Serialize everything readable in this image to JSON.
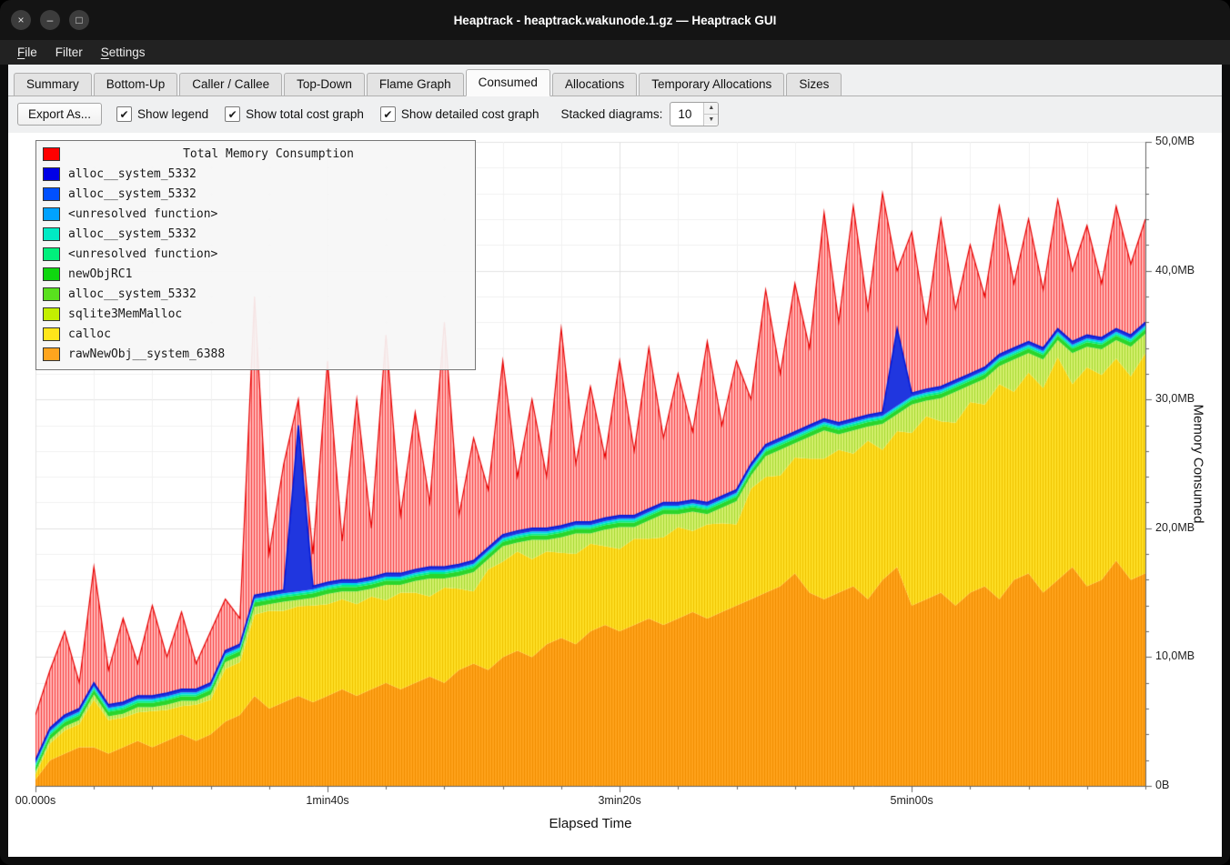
{
  "window": {
    "title": "Heaptrack - heaptrack.wakunode.1.gz — Heaptrack GUI",
    "controls": {
      "close": "×",
      "minimize": "–",
      "maximize": "□"
    }
  },
  "menu": {
    "file": {
      "mn": "F",
      "rest": "ile"
    },
    "filter": {
      "mn": "",
      "rest": "Filter"
    },
    "settings": {
      "mn": "S",
      "rest": "ettings"
    }
  },
  "tabs": [
    {
      "label": "Summary"
    },
    {
      "label": "Bottom-Up"
    },
    {
      "label": "Caller / Callee"
    },
    {
      "label": "Top-Down"
    },
    {
      "label": "Flame Graph"
    },
    {
      "label": "Consumed",
      "active": true
    },
    {
      "label": "Allocations"
    },
    {
      "label": "Temporary Allocations"
    },
    {
      "label": "Sizes"
    }
  ],
  "toolbar": {
    "export_label": "Export As...",
    "checkboxes": [
      {
        "label": "Show legend",
        "checked": true
      },
      {
        "label": "Show total cost graph",
        "checked": true
      },
      {
        "label": "Show detailed cost graph",
        "checked": true
      }
    ],
    "stacked_label": "Stacked diagrams:",
    "stacked_value": "10"
  },
  "chart_data": {
    "type": "area",
    "title": "Total Memory Consumption",
    "xlabel": "Elapsed Time",
    "ylabel": "Memory Consumed",
    "unit": "MB",
    "xlim": [
      0,
      380
    ],
    "ylim": [
      0,
      50
    ],
    "grid": {
      "x_minor": 20,
      "x_major": 100,
      "y_minor": 2,
      "y_major": 10
    },
    "x_ticks": [
      {
        "t": 0,
        "label": "00.000s"
      },
      {
        "t": 100,
        "label": "1min40s"
      },
      {
        "t": 200,
        "label": "3min20s"
      },
      {
        "t": 300,
        "label": "5min00s"
      }
    ],
    "y_ticks": [
      {
        "v": 0,
        "label": "0B"
      },
      {
        "v": 10,
        "label": "10,0MB"
      },
      {
        "v": 20,
        "label": "20,0MB"
      },
      {
        "v": 30,
        "label": "30,0MB"
      },
      {
        "v": 40,
        "label": "40,0MB"
      },
      {
        "v": 50,
        "label": "50,0MB"
      }
    ],
    "x_start": 0,
    "x_step": 5,
    "x_count": 77,
    "band_offsets": {
      "palegreen_top": 0.9,
      "green": 0.35,
      "spring": 0.15,
      "cyan": 0.15,
      "blue": 0.25
    },
    "blue_spikes": [
      18,
      59
    ],
    "solid_top": [
      2.0,
      4.5,
      5.5,
      6.0,
      8.0,
      6.3,
      6.5,
      7.0,
      7.0,
      7.2,
      7.5,
      7.5,
      8.0,
      10.5,
      11.0,
      14.8,
      15.0,
      15.2,
      28.0,
      15.5,
      15.8,
      16.0,
      16.0,
      16.2,
      16.5,
      16.5,
      16.8,
      17.0,
      17.0,
      17.2,
      17.5,
      18.5,
      19.5,
      19.8,
      20.0,
      20.0,
      20.2,
      20.5,
      20.5,
      20.8,
      21.0,
      21.0,
      21.5,
      22.0,
      22.0,
      22.2,
      22.0,
      22.5,
      23.0,
      25.0,
      26.5,
      27.0,
      27.5,
      28.0,
      28.5,
      28.2,
      28.5,
      28.8,
      29.0,
      35.5,
      30.5,
      30.8,
      31.0,
      31.5,
      32.0,
      32.5,
      33.5,
      34.0,
      34.5,
      34.0,
      35.5,
      34.5,
      35.0,
      34.8,
      35.5,
      35.0,
      36.0
    ],
    "orange": [
      0.5,
      2.0,
      2.5,
      3.0,
      3.0,
      2.5,
      3.0,
      3.5,
      3.0,
      3.5,
      4.0,
      3.5,
      4.0,
      5.0,
      5.5,
      7.0,
      6.0,
      6.5,
      7.0,
      6.5,
      7.0,
      7.5,
      7.0,
      7.5,
      8.0,
      7.5,
      8.0,
      8.5,
      8.0,
      9.0,
      9.5,
      9.0,
      10.0,
      10.5,
      10.0,
      11.0,
      11.5,
      11.0,
      12.0,
      12.5,
      12.0,
      12.5,
      13.0,
      12.5,
      13.0,
      13.5,
      13.0,
      13.5,
      14.0,
      14.5,
      15.0,
      15.5,
      16.5,
      15.0,
      14.5,
      15.0,
      15.5,
      14.5,
      16.0,
      17.0,
      14.0,
      14.5,
      15.0,
      14.0,
      15.0,
      15.5,
      14.5,
      16.0,
      16.5,
      15.0,
      16.0,
      17.0,
      15.5,
      16.0,
      17.5,
      16.0,
      16.5
    ],
    "palegreen": [
      0.2,
      0.3,
      0.3,
      0.3,
      0.4,
      0.3,
      0.3,
      0.4,
      0.3,
      0.4,
      0.4,
      0.3,
      0.4,
      0.5,
      0.5,
      0.6,
      0.5,
      0.7,
      0.5,
      0.6,
      0.8,
      0.6,
      1.0,
      0.6,
      1.2,
      0.6,
      0.9,
      1.4,
      0.7,
      1.0,
      1.5,
      0.8,
      1.2,
      0.7,
      1.5,
      0.9,
      1.2,
      1.6,
      0.8,
      1.3,
      1.7,
      0.9,
      1.4,
      1.8,
      1.0,
      1.5,
      0.8,
      1.2,
      1.8,
      1.0,
      1.6,
      2.0,
      1.1,
      1.7,
      2.2,
      1.2,
      1.8,
      1.1,
      2.0,
      1.3,
      2.2,
      1.2,
      1.8,
      2.4,
      1.3,
      2.0,
      1.4,
      2.5,
      1.5,
      2.2,
      1.3,
      2.4,
      1.6,
      2.0,
      1.4,
      2.3,
      1.5
    ],
    "total": [
      5.5,
      9.0,
      12.0,
      8.0,
      17.0,
      9.0,
      13.0,
      9.5,
      14.0,
      10.0,
      13.5,
      9.5,
      12.0,
      14.5,
      13.0,
      38.0,
      18.0,
      25.0,
      30.0,
      18.0,
      33.0,
      19.0,
      30.0,
      20.0,
      35.0,
      21.0,
      29.0,
      22.0,
      36.0,
      21.0,
      27.0,
      23.0,
      33.0,
      24.0,
      30.0,
      24.0,
      35.5,
      25.0,
      31.0,
      25.5,
      33.0,
      26.0,
      34.0,
      27.0,
      32.0,
      27.5,
      34.5,
      28.0,
      33.0,
      30.0,
      38.5,
      32.0,
      39.0,
      34.0,
      44.5,
      36.0,
      45.0,
      37.0,
      46.0,
      40.0,
      43.0,
      36.0,
      44.0,
      37.0,
      42.0,
      38.0,
      45.0,
      39.0,
      44.0,
      38.5,
      45.5,
      40.0,
      43.5,
      39.0,
      45.0,
      40.5,
      44.0
    ],
    "colors": {
      "orange_base": "#ffa21c",
      "orange_line": "#f18e00",
      "yellow_base": "#ffdf26",
      "yellow_line": "#eec200",
      "palegreen_base": "#d3f06e",
      "palegreen_line": "#a8d832",
      "green": "#2bd52b",
      "spring": "#00ef86",
      "cyan": "#00cff0",
      "blue": "#2036df",
      "red_base": "#ffb6b6",
      "red_line": "#f84040",
      "total_stroke": "#e60000",
      "solid_stroke": "#0018d8",
      "grid_minor": "#f0f0f0",
      "grid_major": "#e2e2e2",
      "axis": "#666666"
    },
    "legend": [
      {
        "label": "Total Memory Consumption",
        "color": "#ff0000",
        "title": true
      },
      {
        "label": "alloc__system_5332",
        "color": "#0000e6"
      },
      {
        "label": "alloc__system_5332",
        "color": "#0050ff"
      },
      {
        "label": "<unresolved function>",
        "color": "#00a2ff"
      },
      {
        "label": "alloc__system_5332",
        "color": "#00ebc4"
      },
      {
        "label": "<unresolved function>",
        "color": "#00f07c"
      },
      {
        "label": "newObjRC1",
        "color": "#0fd60f"
      },
      {
        "label": "alloc__system_5332",
        "color": "#59e01e"
      },
      {
        "label": "sqlite3MemMalloc",
        "color": "#c3ef00"
      },
      {
        "label": "calloc",
        "color": "#ffe61a"
      },
      {
        "label": "rawNewObj__system_6388",
        "color": "#ffa51e"
      }
    ]
  }
}
